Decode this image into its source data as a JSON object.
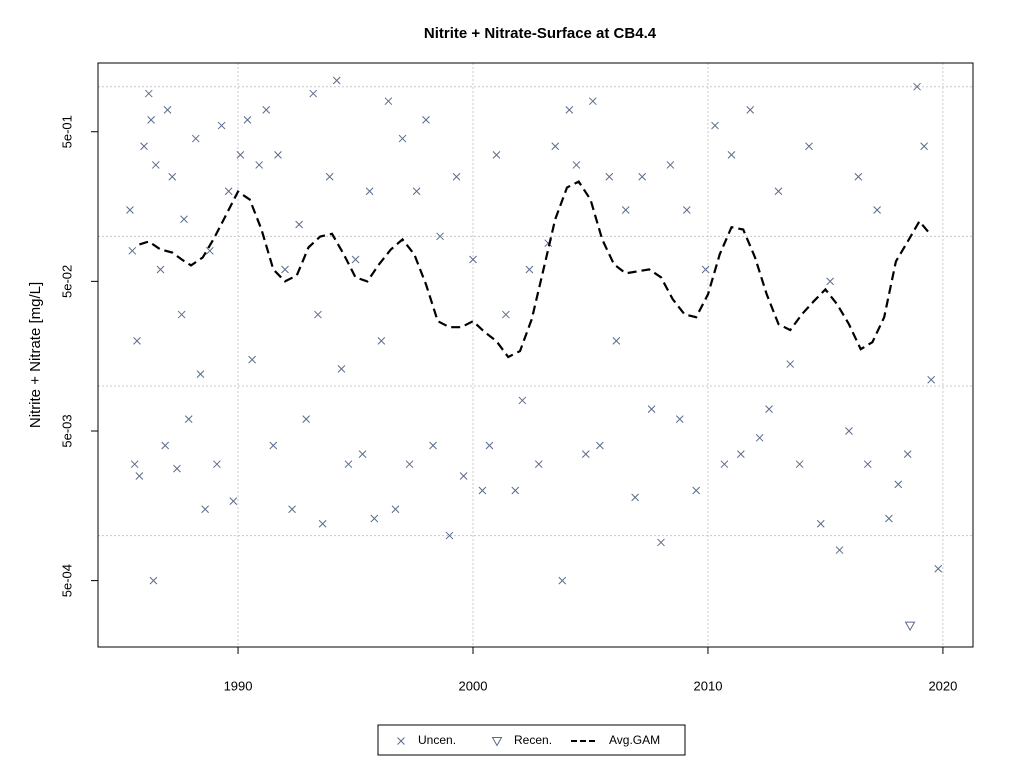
{
  "chart_data": {
    "type": "scatter",
    "title": "Nitrite + Nitrate-Surface at CB4.4",
    "y_label": "Nitrite + Nitrate [mg/L]",
    "log_y": true,
    "xlim": [
      1984.04,
      2021.28
    ],
    "ylim": [
      0.00018,
      1.44
    ],
    "xticks": [
      1990,
      2000,
      2010,
      2020
    ],
    "yticks": [
      {
        "value": 0.0005,
        "label": "5e-04"
      },
      {
        "value": 0.005,
        "label": "5e-03"
      },
      {
        "value": 0.05,
        "label": "5e-02"
      },
      {
        "value": 0.5,
        "label": "5e-01"
      }
    ],
    "ygrid": [
      0.001,
      0.01,
      0.1,
      1
    ],
    "grid": true,
    "legend": "bottom",
    "series": [
      {
        "name": "Uncen.",
        "kind": "scatter",
        "marker": "x",
        "color": "#5b6b8c",
        "x": [
          1985.4,
          1985.5,
          1985.6,
          1985.7,
          1985.8,
          1986.0,
          1986.2,
          1986.3,
          1986.4,
          1986.5,
          1986.7,
          1986.9,
          1987.0,
          1987.2,
          1987.4,
          1987.6,
          1987.7,
          1987.9,
          1988.2,
          1988.4,
          1988.6,
          1988.8,
          1989.1,
          1989.3,
          1989.6,
          1989.8,
          1990.1,
          1990.4,
          1990.6,
          1990.9,
          1991.2,
          1991.5,
          1991.7,
          1992.0,
          1992.3,
          1992.6,
          1992.9,
          1993.2,
          1993.4,
          1993.6,
          1993.9,
          1994.2,
          1994.4,
          1994.7,
          1995.0,
          1995.3,
          1995.6,
          1995.8,
          1996.1,
          1996.4,
          1996.7,
          1997.0,
          1997.3,
          1997.6,
          1998.0,
          1998.3,
          1998.6,
          1999.0,
          1999.3,
          1999.6,
          2000.0,
          2000.4,
          2000.7,
          2001.0,
          2001.4,
          2001.8,
          2002.1,
          2002.4,
          2002.8,
          2003.2,
          2003.5,
          2003.8,
          2004.1,
          2004.4,
          2004.8,
          2005.1,
          2005.4,
          2005.8,
          2006.1,
          2006.5,
          2006.9,
          2007.2,
          2007.6,
          2008.0,
          2008.4,
          2008.8,
          2009.1,
          2009.5,
          2009.9,
          2010.3,
          2010.7,
          2011.0,
          2011.4,
          2011.8,
          2012.2,
          2012.6,
          2013.0,
          2013.5,
          2013.9,
          2014.3,
          2014.8,
          2015.2,
          2015.6,
          2016.0,
          2016.4,
          2016.8,
          2017.2,
          2017.7,
          2018.1,
          2018.5,
          2018.9,
          2019.2,
          2019.5,
          2019.8
        ],
        "values": [
          0.15,
          0.08,
          0.003,
          0.02,
          0.0025,
          0.4,
          0.9,
          0.6,
          0.0005,
          0.3,
          0.06,
          0.004,
          0.7,
          0.25,
          0.0028,
          0.03,
          0.13,
          0.006,
          0.45,
          0.012,
          0.0015,
          0.08,
          0.003,
          0.55,
          0.2,
          0.0017,
          0.35,
          0.6,
          0.015,
          0.3,
          0.7,
          0.004,
          0.35,
          0.06,
          0.0015,
          0.12,
          0.006,
          0.9,
          0.03,
          0.0012,
          0.25,
          1.1,
          0.013,
          0.003,
          0.07,
          0.0035,
          0.2,
          0.0013,
          0.02,
          0.8,
          0.0015,
          0.45,
          0.003,
          0.2,
          0.6,
          0.004,
          0.1,
          0.001,
          0.25,
          0.0025,
          0.07,
          0.002,
          0.004,
          0.35,
          0.03,
          0.002,
          0.008,
          0.06,
          0.003,
          0.09,
          0.4,
          0.0005,
          0.7,
          0.3,
          0.0035,
          0.8,
          0.004,
          0.25,
          0.02,
          0.15,
          0.0018,
          0.25,
          0.007,
          0.0009,
          0.3,
          0.006,
          0.15,
          0.002,
          0.06,
          0.55,
          0.003,
          0.35,
          0.0035,
          0.7,
          0.0045,
          0.007,
          0.2,
          0.014,
          0.003,
          0.4,
          0.0012,
          0.05,
          0.0008,
          0.005,
          0.25,
          0.003,
          0.15,
          0.0013,
          0.0022,
          0.0035,
          1.0,
          0.4,
          0.011,
          0.0006
        ]
      },
      {
        "name": "Recen.",
        "kind": "scatter",
        "marker": "triangle-down",
        "color": "#5b6b8c",
        "x": [
          2018.6
        ],
        "values": [
          0.00025
        ]
      },
      {
        "name": "Avg.GAM",
        "kind": "line",
        "linestyle": "dashed",
        "color": "#000000",
        "x": [
          1985.8,
          1986.2,
          1986.7,
          1987.2,
          1987.6,
          1988.0,
          1988.5,
          1989.0,
          1989.5,
          1990.0,
          1990.5,
          1991.0,
          1991.5,
          1992.0,
          1992.5,
          1993.0,
          1993.5,
          1994.0,
          1994.5,
          1995.0,
          1995.5,
          1996.0,
          1996.5,
          1997.0,
          1997.5,
          1998.0,
          1998.5,
          1999.0,
          1999.5,
          2000.0,
          2000.5,
          2001.0,
          2001.5,
          2002.0,
          2002.5,
          2003.0,
          2003.5,
          2004.0,
          2004.5,
          2005.0,
          2005.5,
          2006.0,
          2006.5,
          2007.0,
          2007.5,
          2008.0,
          2008.5,
          2009.0,
          2009.5,
          2010.0,
          2010.5,
          2011.0,
          2011.5,
          2012.0,
          2012.5,
          2013.0,
          2013.5,
          2014.0,
          2014.5,
          2015.0,
          2015.5,
          2016.0,
          2016.5,
          2017.0,
          2017.5,
          2018.0,
          2018.5,
          2019.0,
          2019.4
        ],
        "values": [
          0.0883,
          0.0924,
          0.0817,
          0.078,
          0.0701,
          0.0639,
          0.0723,
          0.0983,
          0.14,
          0.199,
          0.176,
          0.111,
          0.0601,
          0.05,
          0.0548,
          0.0843,
          0.0998,
          0.104,
          0.0757,
          0.0532,
          0.05,
          0.0649,
          0.0817,
          0.0953,
          0.0757,
          0.0477,
          0.0271,
          0.0247,
          0.0247,
          0.0271,
          0.0229,
          0.0199,
          0.0156,
          0.0171,
          0.0279,
          0.0601,
          0.13,
          0.212,
          0.232,
          0.176,
          0.0953,
          0.0649,
          0.0566,
          0.0583,
          0.0601,
          0.0532,
          0.038,
          0.0301,
          0.0288,
          0.041,
          0.0757,
          0.115,
          0.111,
          0.0723,
          0.041,
          0.0259,
          0.0236,
          0.0301,
          0.0368,
          0.0442,
          0.0351,
          0.0259,
          0.0176,
          0.0196,
          0.0288,
          0.068,
          0.0924,
          0.126,
          0.106
        ]
      }
    ]
  }
}
